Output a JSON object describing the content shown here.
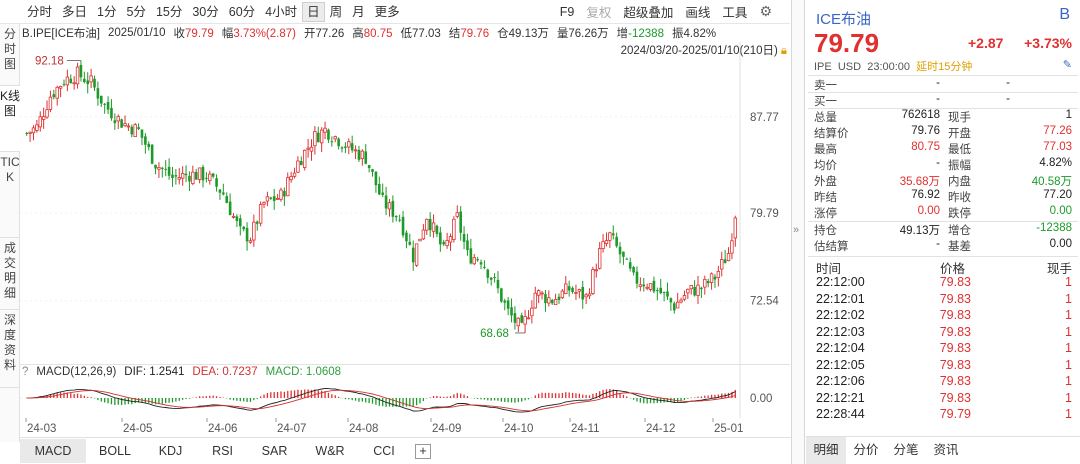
{
  "toolbar": {
    "periods": [
      "分时",
      "多日",
      "1分",
      "5分",
      "15分",
      "30分",
      "60分",
      "4小时",
      "日",
      "周",
      "月",
      "更多"
    ],
    "active_period": 8,
    "right_items": [
      {
        "label": "F9",
        "disabled": false
      },
      {
        "label": "复权",
        "disabled": true
      },
      {
        "label": "超级叠加",
        "disabled": false
      },
      {
        "label": "画线",
        "disabled": false
      },
      {
        "label": "工具",
        "disabled": false
      }
    ],
    "settings_icon": "gear-icon"
  },
  "left_tabs": [
    "分时图",
    "K线图",
    "TICK",
    "成交明细",
    "深度资料"
  ],
  "left_tabs_active": 1,
  "info": {
    "symbol": "B.IPE[ICE布油]",
    "date": "2025/01/10",
    "close_label": "收",
    "close": "79.79",
    "amp_label": "幅",
    "amp": "3.73%(2.87)",
    "open_label": "开",
    "open": "77.26",
    "high_label": "高",
    "high": "80.75",
    "low_label": "低",
    "low": "77.03",
    "settle_label": "结",
    "settle": "79.76",
    "oi_label": "仓",
    "oi": "49.13万",
    "vol_label": "量",
    "vol": "76.26万",
    "inc_label": "增",
    "inc": "-12388",
    "swing_label": "振",
    "swing": "4.82%"
  },
  "range": {
    "text": "2024/03/20-2025/01/10(210日)",
    "lock_icon": "lock-icon"
  },
  "chart_data": {
    "type": "candlestick",
    "y_ticks": [
      87.77,
      79.79,
      72.54
    ],
    "ylim": [
      67.8,
      93.3
    ],
    "high_mark": "92.18",
    "low_mark": "68.68",
    "x_labels": [
      "24-03",
      "24-05",
      "24-06",
      "24-07",
      "24-08",
      "24-09",
      "24-10",
      "24-11",
      "24-12",
      "25-01"
    ],
    "anchors": [
      [
        0,
        86.4
      ],
      [
        3,
        86.9
      ],
      [
        7,
        89.5
      ],
      [
        11,
        90.8
      ],
      [
        15,
        91.3
      ],
      [
        19,
        90.6
      ],
      [
        23,
        88.7
      ],
      [
        28,
        87.3
      ],
      [
        33,
        86.6
      ],
      [
        38,
        83.9
      ],
      [
        43,
        82.7
      ],
      [
        48,
        83.0
      ],
      [
        53,
        82.9
      ],
      [
        58,
        81.4
      ],
      [
        63,
        78.2
      ],
      [
        66,
        77.8
      ],
      [
        70,
        80.6
      ],
      [
        75,
        81.2
      ],
      [
        80,
        84.0
      ],
      [
        85,
        86.1
      ],
      [
        88,
        86.7
      ],
      [
        91,
        86.1
      ],
      [
        95,
        85.2
      ],
      [
        100,
        84.4
      ],
      [
        105,
        80.7
      ],
      [
        110,
        79.4
      ],
      [
        114,
        76.2
      ],
      [
        118,
        79.6
      ],
      [
        123,
        76.6
      ],
      [
        127,
        79.4
      ],
      [
        130,
        76.3
      ],
      [
        134,
        76.0
      ],
      [
        138,
        74.0
      ],
      [
        142,
        71.6
      ],
      [
        146,
        70.1
      ],
      [
        150,
        73.2
      ],
      [
        155,
        72.6
      ],
      [
        160,
        73.5
      ],
      [
        165,
        72.8
      ],
      [
        169,
        76.5
      ],
      [
        172,
        77.9
      ],
      [
        175,
        76.4
      ],
      [
        179,
        74.3
      ],
      [
        183,
        74.0
      ],
      [
        187,
        73.2
      ],
      [
        191,
        72.1
      ],
      [
        195,
        73.3
      ],
      [
        199,
        73.6
      ],
      [
        203,
        74.5
      ],
      [
        207,
        76.5
      ],
      [
        209,
        79.8
      ]
    ],
    "bars": 210
  },
  "macd": {
    "help": "?",
    "name": "MACD(12,26,9)",
    "dif": "DIF: 1.2541",
    "dea": "DEA: 0.7237",
    "macd": "MACD: 1.0608",
    "zero_label": "0.00"
  },
  "indicator_tabs": [
    "MACD",
    "BOLL",
    "KDJ",
    "RSI",
    "SAR",
    "W&R",
    "CCI",
    "+"
  ],
  "indicator_active": 0,
  "quote": {
    "name": "ICE布油",
    "badge": "B",
    "price": "79.79",
    "change": "+2.87",
    "pct": "+3.73%",
    "exchange": "IPE",
    "currency": "USD",
    "time": "23:00:00",
    "delay": "延时15分钟",
    "edit_icon": "pencil-icon",
    "sell_label": "卖一",
    "sell_price": "-",
    "sell_vol": "-",
    "buy_label": "买一",
    "buy_price": "-",
    "buy_vol": "-"
  },
  "stats": [
    {
      "l1": "总量",
      "v1": "762618",
      "c1": "dark",
      "l2": "现手",
      "v2": "1",
      "c2": "dark"
    },
    {
      "l1": "结算价",
      "v1": "79.76",
      "c1": "dark",
      "l2": "开盘",
      "v2": "77.26",
      "c2": "red"
    },
    {
      "l1": "最高",
      "v1": "80.75",
      "c1": "red",
      "l2": "最低",
      "v2": "77.03",
      "c2": "red"
    },
    {
      "l1": "均价",
      "v1": "-",
      "c1": "dark",
      "l2": "振幅",
      "v2": "4.82%",
      "c2": "dark"
    },
    {
      "l1": "外盘",
      "v1": "35.68万",
      "c1": "red",
      "l2": "内盘",
      "v2": "40.58万",
      "c2": "green"
    },
    {
      "l1": "昨结",
      "v1": "76.92",
      "c1": "dark",
      "l2": "昨收",
      "v2": "77.20",
      "c2": "dark"
    },
    {
      "l1": "涨停",
      "v1": "0.00",
      "c1": "red",
      "l2": "跌停",
      "v2": "0.00",
      "c2": "green"
    }
  ],
  "stats2": [
    {
      "l1": "持仓",
      "v1": "49.13万",
      "c1": "dark",
      "l2": "增仓",
      "v2": "-12388",
      "c2": "green"
    },
    {
      "l1": "估结算",
      "v1": "-",
      "c1": "dark",
      "l2": "基差",
      "v2": "0.00",
      "c2": "dark"
    }
  ],
  "ticks": {
    "head_time": "时间",
    "head_price": "价格",
    "head_vol": "现手",
    "rows": [
      {
        "time": "22:12:00",
        "price": "79.83",
        "vol": "1"
      },
      {
        "time": "22:12:01",
        "price": "79.83",
        "vol": "1"
      },
      {
        "time": "22:12:02",
        "price": "79.83",
        "vol": "1"
      },
      {
        "time": "22:12:03",
        "price": "79.83",
        "vol": "1"
      },
      {
        "time": "22:12:04",
        "price": "79.83",
        "vol": "1"
      },
      {
        "time": "22:12:05",
        "price": "79.83",
        "vol": "1"
      },
      {
        "time": "22:12:06",
        "price": "79.83",
        "vol": "1"
      },
      {
        "time": "22:12:21",
        "price": "79.83",
        "vol": "1"
      },
      {
        "time": "22:28:44",
        "price": "79.79",
        "vol": "1"
      }
    ]
  },
  "right_tabs": [
    "明细",
    "分价",
    "分笔",
    "资讯"
  ],
  "right_tabs_active": 0,
  "colors": {
    "up": "#e03030",
    "down": "#1d9a2a",
    "accent": "#3a66c4",
    "delay": "#e0a000"
  }
}
